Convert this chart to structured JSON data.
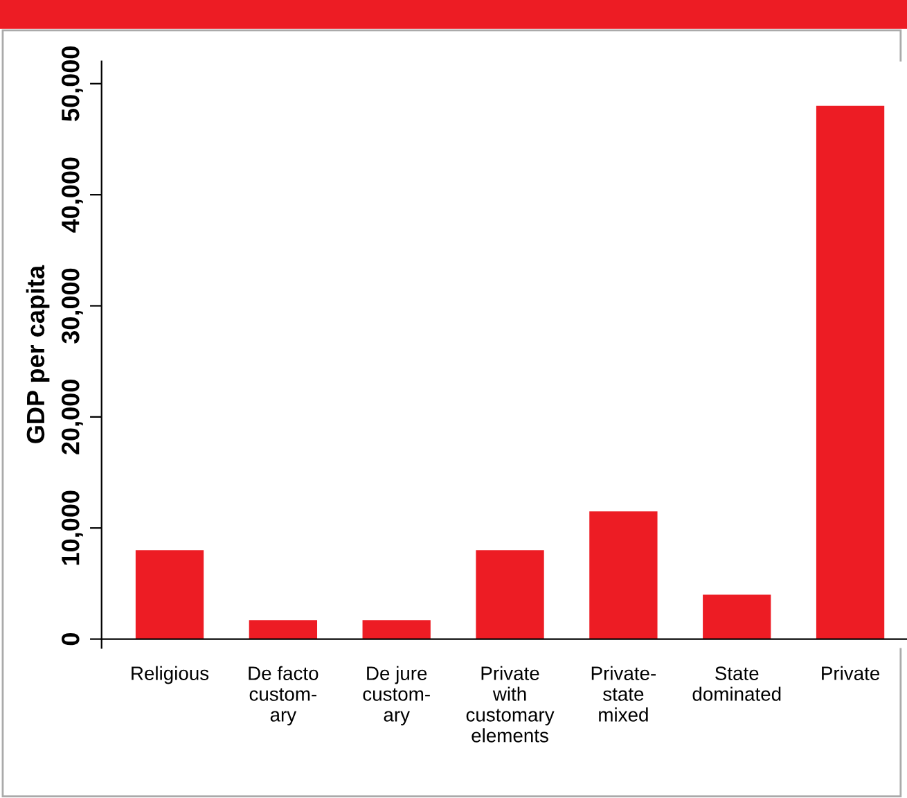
{
  "chart_data": {
    "type": "bar",
    "ylabel": "GDP per capita",
    "categories": [
      "Religious",
      "De facto\ncustom-\nary",
      "De jure\ncustom-\nary",
      "Private\nwith\ncustomary\nelements",
      "Private-\nstate\nmixed",
      "State\ndominated",
      "Private"
    ],
    "values": [
      8000,
      1700,
      1700,
      8000,
      11500,
      4000,
      48000
    ],
    "color": "#ed1c24",
    "ylim": [
      -800,
      52000
    ],
    "yticks": [
      0,
      {
        "value": 10000,
        "label": "10,000"
      },
      {
        "value": 20000,
        "label": "20,000"
      },
      {
        "value": 30000,
        "label": "30,000"
      },
      {
        "value": 40000,
        "label": "40,000"
      },
      {
        "value": 50000,
        "label": "50,000"
      }
    ]
  }
}
